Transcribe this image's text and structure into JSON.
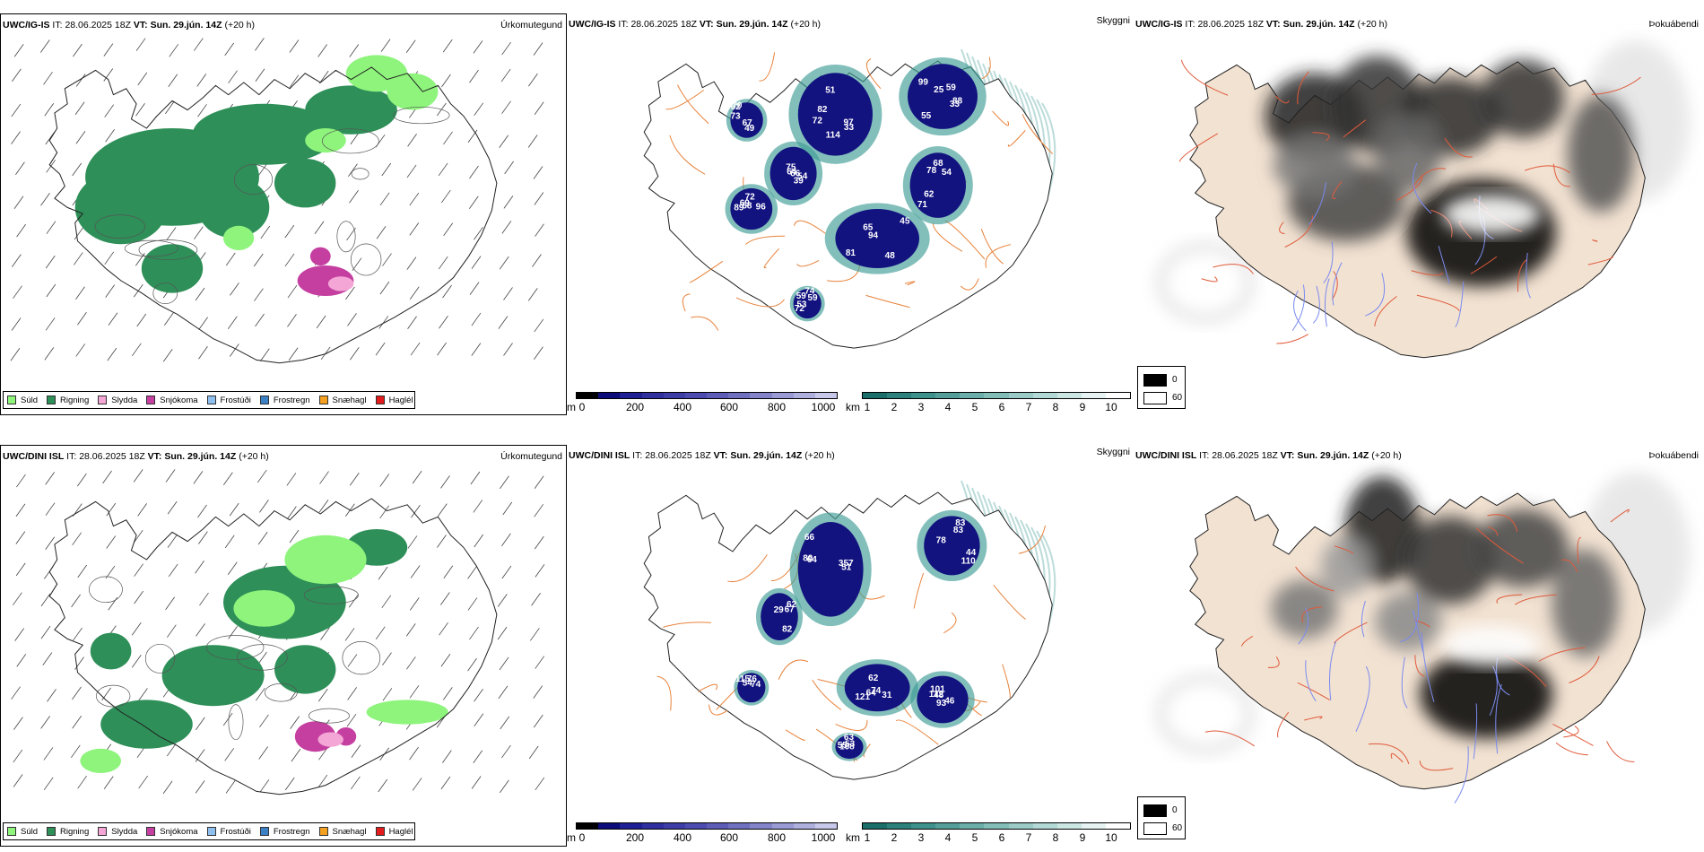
{
  "colors": {
    "sula": "#8ef47c",
    "rigning": "#2e8f58",
    "slydda": "#f4a6d6",
    "snjokoma": "#c43fa0",
    "frostudi": "#8fbfef",
    "frostregn": "#3b7fc4",
    "snaehagl": "#f4a020",
    "haglel": "#e21b1b",
    "cloud_base_dark": "#131380",
    "visibility_teal": "#3f9c96",
    "roads": "#e8823a",
    "land_fog": "#f2e2d2"
  },
  "rows": [
    {
      "precip": {
        "title_model": "UWC/IG-IS",
        "title_it_label": "IT:",
        "title_it": "28.06.2025 18Z",
        "title_vt_label": "VT:",
        "title_vt": "Sun. 29.jún. 14Z",
        "title_lead": "(+20 h)",
        "label": "Úrkomutegund"
      },
      "cloud": {
        "title_model": "UWC/IG-IS",
        "title_it_label": "IT:",
        "title_it": "28.06.2025 18Z",
        "title_vt_label": "VT:",
        "title_vt": "Sun. 29.jún. 14Z",
        "title_lead": "(+20 h)",
        "label": "Skyggni",
        "values": [
          "72",
          "55",
          "68",
          "66",
          "65",
          "69",
          "74",
          "49",
          "82",
          "59",
          "78",
          "54",
          "81",
          "96",
          "59",
          "70",
          "51",
          "88",
          "71",
          "75",
          "45",
          "72",
          "53",
          "62",
          "114",
          "99",
          "62",
          "64",
          "94",
          "89",
          "59",
          "67",
          "33",
          "33",
          "54",
          "39",
          "48",
          "68",
          "72",
          "73",
          "97",
          "25"
        ]
      },
      "fog": {
        "title_model": "UWC/IG-IS",
        "title_it_label": "IT:",
        "title_it": "28.06.2025 18Z",
        "title_vt_label": "VT:",
        "title_vt": "Sun. 29.jún. 14Z",
        "title_lead": "(+20 h)",
        "label": "Þokuábendi"
      }
    },
    {
      "precip": {
        "title_model": "UWC/DINI ISL",
        "title_it_label": "IT:",
        "title_it": "28.06.2025 18Z",
        "title_vt_label": "VT:",
        "title_vt": "Sun. 29.jún. 14Z",
        "title_lead": "(+20 h)",
        "label": "Úrkomutegund"
      },
      "cloud": {
        "title_model": "UWC/DINI ISL",
        "title_it_label": "IT:",
        "title_it": "28.06.2025 18Z",
        "title_vt_label": "VT:",
        "title_vt": "Sun. 29.jún. 14Z",
        "title_lead": "(+20 h)",
        "label": "Skyggni",
        "values": [
          "51",
          "78",
          "93",
          "74",
          "67",
          "76",
          "53",
          "64",
          "110",
          "101",
          "121",
          "62",
          "54",
          "63",
          "80",
          "83",
          "112",
          "64",
          "82",
          "115",
          "108",
          "66",
          "44",
          "48",
          "31",
          "29",
          "74",
          "55",
          "357",
          "83",
          "46",
          "62"
        ]
      },
      "fog": {
        "title_model": "UWC/DINI ISL",
        "title_it_label": "IT:",
        "title_it": "28.06.2025 18Z",
        "title_vt_label": "VT:",
        "title_vt": "Sun. 29.jún. 14Z",
        "title_lead": "(+20 h)",
        "label": "Þokuábendi"
      }
    }
  ],
  "precip_legend": [
    "Súld",
    "Rigning",
    "Slydda",
    "Snjókoma",
    "Frostúði",
    "Frostregn",
    "Snæhagl",
    "Haglél"
  ],
  "height_bar": {
    "unit": "m",
    "ticks": [
      "0",
      "200",
      "400",
      "600",
      "800",
      "1000"
    ]
  },
  "vis_bar": {
    "unit": "km",
    "ticks": [
      "1",
      "2",
      "3",
      "4",
      "5",
      "6",
      "7",
      "8",
      "9",
      "10"
    ]
  },
  "fog_legend": {
    "dark": "0",
    "light": "60"
  }
}
